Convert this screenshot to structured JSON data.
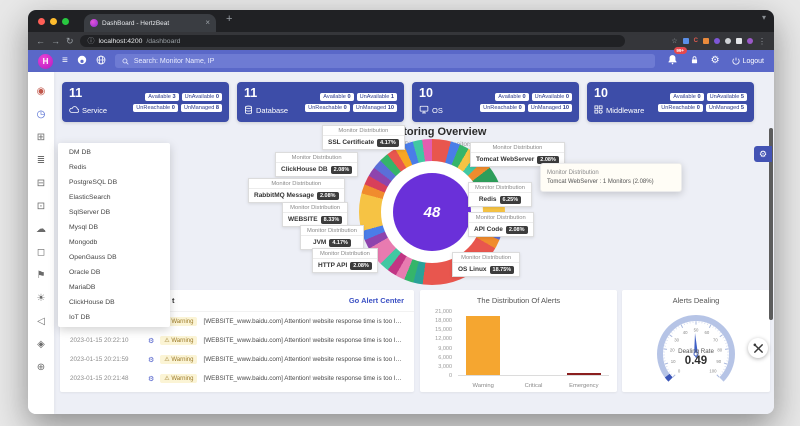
{
  "browser": {
    "tab_title": "DashBoard - HertzBeat",
    "url_host": "localhost:4200",
    "url_path": "/dashboard",
    "new_tab": "+"
  },
  "app_header": {
    "search_label": "Search: Monitor Name, IP",
    "notification_badge": "99+",
    "logout_label": "Logout"
  },
  "cards": [
    {
      "count": "11",
      "label": "Service",
      "icon": "cloud-icon",
      "badges": [
        [
          "Available",
          "3"
        ],
        [
          "UnAvailable",
          "0"
        ],
        [
          "UnReachable",
          "0"
        ],
        [
          "UnManaged",
          "8"
        ]
      ]
    },
    {
      "count": "11",
      "label": "Database",
      "icon": "database-icon",
      "badges": [
        [
          "Available",
          "0"
        ],
        [
          "UnAvailable",
          "1"
        ],
        [
          "UnReachable",
          "0"
        ],
        [
          "UnManaged",
          "10"
        ]
      ]
    },
    {
      "count": "10",
      "label": "OS",
      "icon": "os-icon",
      "badges": [
        [
          "Available",
          "0"
        ],
        [
          "UnAvailable",
          "0"
        ],
        [
          "UnReachable",
          "0"
        ],
        [
          "UnManaged",
          "10"
        ]
      ]
    },
    {
      "count": "10",
      "label": "Middleware",
      "icon": "middleware-icon",
      "badges": [
        [
          "Available",
          "0"
        ],
        [
          "UnAvailable",
          "5"
        ],
        [
          "UnReachable",
          "0"
        ],
        [
          "UnManaged",
          "5"
        ]
      ]
    }
  ],
  "sidebar": {
    "icons": [
      {
        "name": "user-icon",
        "glyph": "◉",
        "color": "#c0564a"
      },
      {
        "name": "monitor-clock-icon",
        "glyph": "◷",
        "color": "#4763cf"
      },
      {
        "name": "dashboard-icon",
        "glyph": "⊞",
        "color": "#6b6b6b"
      },
      {
        "name": "list-icon",
        "glyph": "≣",
        "color": "#6b6b6b"
      },
      {
        "name": "apps-icon",
        "glyph": "⊟",
        "color": "#6b6b6b"
      },
      {
        "name": "expand-icon",
        "glyph": "⊡",
        "color": "#6b6b6b"
      },
      {
        "name": "cloud-icon",
        "glyph": "☁",
        "color": "#6b6b6b"
      },
      {
        "name": "template-icon",
        "glyph": "◻",
        "color": "#6b6b6b"
      },
      {
        "name": "flag-icon",
        "glyph": "⚑",
        "color": "#6b6b6b"
      },
      {
        "name": "bulb-icon",
        "glyph": "☀",
        "color": "#6b6b6b"
      },
      {
        "name": "send-icon",
        "glyph": "◁",
        "color": "#6b6b6b"
      },
      {
        "name": "tag-icon",
        "glyph": "◈",
        "color": "#6b6b6b"
      },
      {
        "name": "globe-icon",
        "glyph": "⊕",
        "color": "#6b6b6b"
      }
    ]
  },
  "dropdown": {
    "items": [
      "DM DB",
      "Redis",
      "PostgreSQL DB",
      "ElasticSearch",
      "SqlServer DB",
      "Mysql DB",
      "Mongodb",
      "OpenGauss DB",
      "Oracle DB",
      "MariaDB",
      "ClickHouse DB",
      "IoT DB"
    ]
  },
  "overview": {
    "title": "Monitoring Overview",
    "subtitle": "The Distribution Of Monitors",
    "center_value": "48",
    "callout_header": "Monitor Distribution",
    "callouts": [
      {
        "name": "SSL Certificate",
        "pct": "4.17%"
      },
      {
        "name": "ClickHouse DB",
        "pct": "2.08%"
      },
      {
        "name": "RabbitMQ Message",
        "pct": "2.08%"
      },
      {
        "name": "WEBSITE",
        "pct": "8.33%"
      },
      {
        "name": "JVM",
        "pct": "4.17%"
      },
      {
        "name": "HTTP API",
        "pct": "2.08%"
      },
      {
        "name": "Tomcat WebServer",
        "pct": "2.08%"
      },
      {
        "name": "Redis",
        "pct": "6.25%"
      },
      {
        "name": "API Code",
        "pct": "2.08%"
      },
      {
        "name": "OS Linux",
        "pct": "18.75%"
      }
    ],
    "tooltip": {
      "line1": "Monitor Distribution",
      "line2": "Tomcat WebServer : 1 Monitors (2.08%)"
    }
  },
  "alerts": {
    "title_fragment": "t",
    "link_label": "Go Alert Center",
    "rows": [
      {
        "time": "2023-01-15 20:22:21",
        "level": "Warning",
        "message": "[WEBSITE_www.baidu.com] Attention! website response time is too long."
      },
      {
        "time": "2023-01-15 20:22:10",
        "level": "Warning",
        "message": "[WEBSITE_www.baidu.com] Attention! website response time is too long."
      },
      {
        "time": "2023-01-15 20:21:59",
        "level": "Warning",
        "message": "[WEBSITE_www.baidu.com] Attention! website response time is too long."
      },
      {
        "time": "2023-01-15 20:21:48",
        "level": "Warning",
        "message": "[WEBSITE_www.baidu.com] Attention! website response time is too long."
      }
    ]
  },
  "chart_data": [
    {
      "type": "pie",
      "title": "Monitoring Overview",
      "subtitle": "The Distribution Of Monitors",
      "center_total": 48,
      "series": [
        {
          "name": "OS Linux",
          "pct": 18.75,
          "monitors": 9
        },
        {
          "name": "WEBSITE",
          "pct": 8.33,
          "monitors": 4
        },
        {
          "name": "Redis",
          "pct": 6.25,
          "monitors": 3
        },
        {
          "name": "SSL Certificate",
          "pct": 4.17,
          "monitors": 2
        },
        {
          "name": "JVM",
          "pct": 4.17,
          "monitors": 2
        },
        {
          "name": "ClickHouse DB",
          "pct": 2.08,
          "monitors": 1
        },
        {
          "name": "RabbitMQ Message",
          "pct": 2.08,
          "monitors": 1
        },
        {
          "name": "HTTP API",
          "pct": 2.08,
          "monitors": 1
        },
        {
          "name": "Tomcat WebServer",
          "pct": 2.08,
          "monitors": 1
        },
        {
          "name": "API Code",
          "pct": 2.08,
          "monitors": 1
        }
      ],
      "display_segments": [
        {
          "color": "#e8564e",
          "pct": 4.17
        },
        {
          "color": "#4a7de8",
          "pct": 2.08
        },
        {
          "color": "#35b56a",
          "pct": 2.08
        },
        {
          "color": "#f6c344",
          "pct": 2.08
        },
        {
          "color": "#41c8a2",
          "pct": 2.08
        },
        {
          "color": "#f08c2e",
          "pct": 2.08
        },
        {
          "color": "#2e9e5b",
          "pct": 6.25
        },
        {
          "color": "#e35db0",
          "pct": 2.08
        },
        {
          "color": "#f6c344",
          "pct": 2.08
        },
        {
          "color": "#b44fd8",
          "pct": 2.08
        },
        {
          "color": "#35b56a",
          "pct": 2.08
        },
        {
          "color": "#5b6fd8",
          "pct": 2.08
        },
        {
          "color": "#f08c2e",
          "pct": 2.08
        },
        {
          "color": "#e8564e",
          "pct": 18.75
        },
        {
          "color": "#2aa198",
          "pct": 2.08
        },
        {
          "color": "#35b56a",
          "pct": 2.08
        },
        {
          "color": "#e87bb0",
          "pct": 2.08
        },
        {
          "color": "#c13584",
          "pct": 2.08
        },
        {
          "color": "#41c8a2",
          "pct": 2.08
        },
        {
          "color": "#e87bb0",
          "pct": 4.17
        },
        {
          "color": "#8e44ad",
          "pct": 2.08
        },
        {
          "color": "#4a7de8",
          "pct": 2.08
        },
        {
          "color": "#f6c344",
          "pct": 8.33
        },
        {
          "color": "#f08c2e",
          "pct": 2.08
        },
        {
          "color": "#d8405a",
          "pct": 2.08
        },
        {
          "color": "#8e44ad",
          "pct": 2.08
        },
        {
          "color": "#5b6fd8",
          "pct": 2.08
        },
        {
          "color": "#35b56a",
          "pct": 2.08
        },
        {
          "color": "#e8564e",
          "pct": 2.08
        },
        {
          "color": "#f6a623",
          "pct": 2.08
        },
        {
          "color": "#4a7de8",
          "pct": 2.08
        },
        {
          "color": "#41c8a2",
          "pct": 2.08
        },
        {
          "color": "#e35db0",
          "pct": 2.17
        }
      ]
    },
    {
      "type": "bar",
      "title": "The Distribution Of Alerts",
      "categories": [
        "Warning",
        "Critical",
        "Emergency"
      ],
      "values": [
        19500,
        0,
        500
      ],
      "colors": [
        "#f5a630",
        "#c23531",
        "#8b1f1f"
      ],
      "ylim": [
        0,
        21000
      ],
      "yticks": [
        0,
        3000,
        6000,
        9000,
        12000,
        15000,
        18000,
        21000
      ]
    },
    {
      "type": "gauge",
      "title": "Alerts Dealing",
      "label": "Dealing Rate",
      "value": 0.49,
      "min": 0,
      "max": 1,
      "axis_labels": [
        0,
        10,
        20,
        30,
        40,
        50,
        60,
        70,
        80,
        90,
        100
      ]
    }
  ]
}
